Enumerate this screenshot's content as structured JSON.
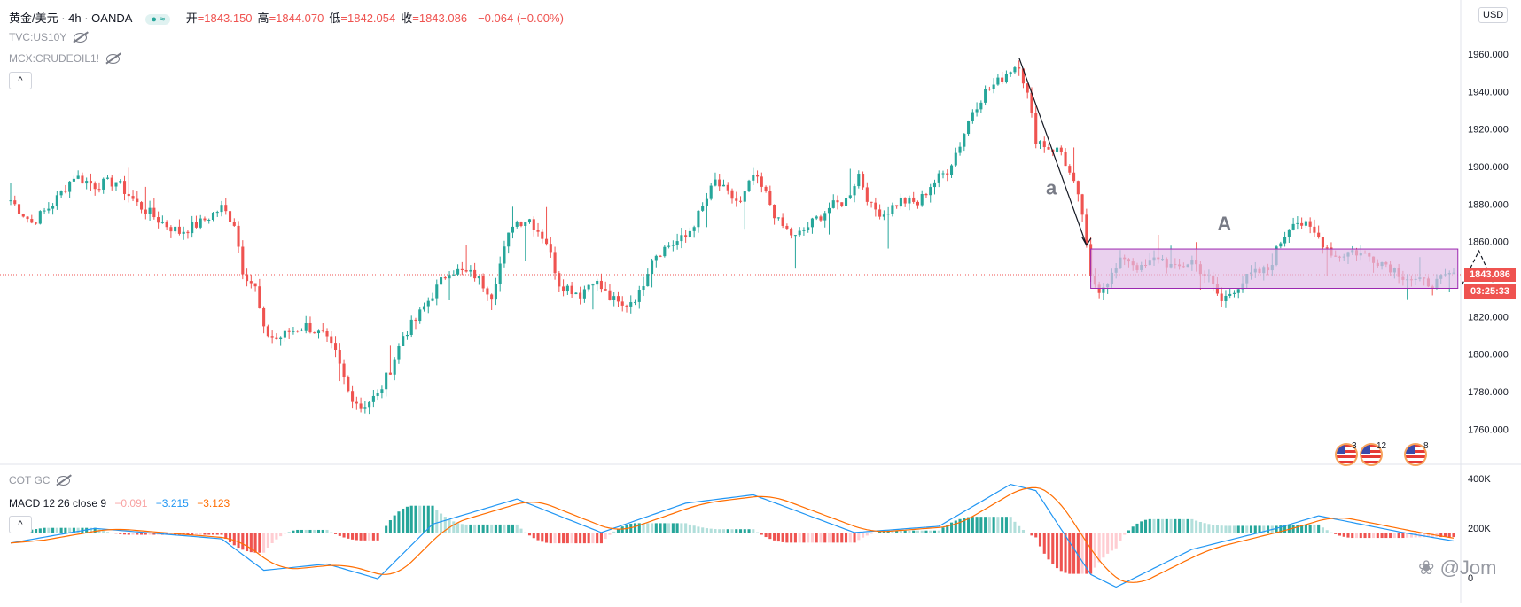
{
  "header": {
    "symbol": "黄金/美元 · 4h · OANDA",
    "ohlc": [
      {
        "k": "开",
        "v": "=1843.150"
      },
      {
        "k": "高",
        "v": "=1844.070"
      },
      {
        "k": "低",
        "v": "=1842.054"
      },
      {
        "k": "收",
        "v": "=1843.086"
      },
      {
        "k": "",
        "v": "−0.064 (−0.00%)"
      }
    ],
    "overlays": [
      "TVC:US10Y",
      "MCX:CRUDEOIL1!"
    ],
    "indicator_cot": "COT GC",
    "macd_label": "MACD 12 26 close 9",
    "macd_values": [
      "−0.091",
      "−3.215",
      "−3.123"
    ],
    "collapse_glyph": "^",
    "currency_button": "USD"
  },
  "price_scale": {
    "labels": [
      "1960.000",
      "1940.000",
      "1920.000",
      "1900.000",
      "1880.000",
      "1860.000",
      "1820.000",
      "1800.000",
      "1780.000",
      "1760.000"
    ],
    "last_price": "1843.086",
    "countdown": "03:25:33"
  },
  "indicator_scale": {
    "labels": [
      "400K",
      "200K",
      "0"
    ]
  },
  "annotations": {
    "wave_a": "a",
    "wave_A": "A"
  },
  "events": [
    {
      "count": "3"
    },
    {
      "count": "12"
    },
    {
      "count": "8"
    }
  ],
  "watermark": "@Jom",
  "colors": {
    "up": "#26a69a",
    "down": "#ef5350",
    "box": "#e1bee7",
    "macd": "#2196f3",
    "signal": "#ff6d00"
  },
  "chart_data": {
    "type": "candlestick",
    "title": "黄金/美元 · 4h · OANDA",
    "ylim": [
      1745,
      1985
    ],
    "anchors": [
      [
        0,
        1882
      ],
      [
        5,
        1870
      ],
      [
        10,
        1880
      ],
      [
        15,
        1895
      ],
      [
        20,
        1890
      ],
      [
        25,
        1892
      ],
      [
        30,
        1880
      ],
      [
        36,
        1870
      ],
      [
        40,
        1865
      ],
      [
        45,
        1870
      ],
      [
        50,
        1878
      ],
      [
        53,
        1870
      ],
      [
        55,
        1845
      ],
      [
        58,
        1835
      ],
      [
        60,
        1812
      ],
      [
        63,
        1808
      ],
      [
        66,
        1812
      ],
      [
        70,
        1815
      ],
      [
        74,
        1810
      ],
      [
        77,
        1800
      ],
      [
        80,
        1780
      ],
      [
        83,
        1772
      ],
      [
        87,
        1778
      ],
      [
        90,
        1792
      ],
      [
        93,
        1810
      ],
      [
        96,
        1818
      ],
      [
        100,
        1832
      ],
      [
        104,
        1845
      ],
      [
        110,
        1842
      ],
      [
        114,
        1832
      ],
      [
        116,
        1848
      ],
      [
        119,
        1870
      ],
      [
        123,
        1872
      ],
      [
        127,
        1860
      ],
      [
        130,
        1838
      ],
      [
        135,
        1832
      ],
      [
        138,
        1840
      ],
      [
        142,
        1830
      ],
      [
        145,
        1825
      ],
      [
        149,
        1832
      ],
      [
        152,
        1852
      ],
      [
        156,
        1858
      ],
      [
        160,
        1862
      ],
      [
        164,
        1878
      ],
      [
        167,
        1892
      ],
      [
        170,
        1885
      ],
      [
        173,
        1880
      ],
      [
        176,
        1895
      ],
      [
        179,
        1885
      ],
      [
        182,
        1870
      ],
      [
        186,
        1862
      ],
      [
        190,
        1870
      ],
      [
        194,
        1878
      ],
      [
        198,
        1882
      ],
      [
        201,
        1896
      ],
      [
        204,
        1878
      ],
      [
        207,
        1875
      ],
      [
        211,
        1882
      ],
      [
        215,
        1880
      ],
      [
        218,
        1890
      ],
      [
        222,
        1898
      ],
      [
        225,
        1912
      ],
      [
        228,
        1930
      ],
      [
        231,
        1940
      ],
      [
        234,
        1945
      ],
      [
        237,
        1952
      ],
      [
        239,
        1955
      ],
      [
        241,
        1938
      ],
      [
        243,
        1915
      ],
      [
        246,
        1910
      ],
      [
        249,
        1908
      ],
      [
        252,
        1890
      ],
      [
        254,
        1875
      ],
      [
        255,
        1856
      ],
      [
        256,
        1840
      ],
      [
        258,
        1835
      ],
      [
        261,
        1842
      ],
      [
        264,
        1852
      ],
      [
        268,
        1845
      ],
      [
        272,
        1852
      ],
      [
        276,
        1845
      ],
      [
        280,
        1850
      ],
      [
        284,
        1840
      ],
      [
        287,
        1828
      ],
      [
        290,
        1835
      ],
      [
        294,
        1842
      ],
      [
        298,
        1845
      ],
      [
        301,
        1860
      ],
      [
        304,
        1872
      ],
      [
        307,
        1868
      ],
      [
        310,
        1862
      ],
      [
        314,
        1852
      ],
      [
        318,
        1855
      ],
      [
        322,
        1852
      ],
      [
        326,
        1848
      ],
      [
        330,
        1842
      ],
      [
        334,
        1838
      ],
      [
        338,
        1838
      ],
      [
        342,
        1843
      ]
    ],
    "candle_count": 343,
    "rectangle": {
      "x0": 256,
      "x1": 343,
      "y0": 1835,
      "y1": 1856
    },
    "macd": {
      "ylim": [
        -3,
        3
      ],
      "anchors": [
        [
          0,
          -0.5
        ],
        [
          20,
          0.2
        ],
        [
          50,
          -0.3
        ],
        [
          60,
          -1.8
        ],
        [
          75,
          -1.5
        ],
        [
          87,
          -2.2
        ],
        [
          100,
          0.4
        ],
        [
          120,
          1.6
        ],
        [
          140,
          0.0
        ],
        [
          160,
          1.4
        ],
        [
          176,
          1.8
        ],
        [
          200,
          0.0
        ],
        [
          220,
          0.3
        ],
        [
          237,
          2.3
        ],
        [
          243,
          2.0
        ],
        [
          256,
          -2.0
        ],
        [
          262,
          -2.6
        ],
        [
          280,
          -0.8
        ],
        [
          300,
          0.2
        ],
        [
          310,
          0.8
        ],
        [
          330,
          0.0
        ],
        [
          342,
          -0.4
        ]
      ],
      "signal_lag": 4
    }
  }
}
